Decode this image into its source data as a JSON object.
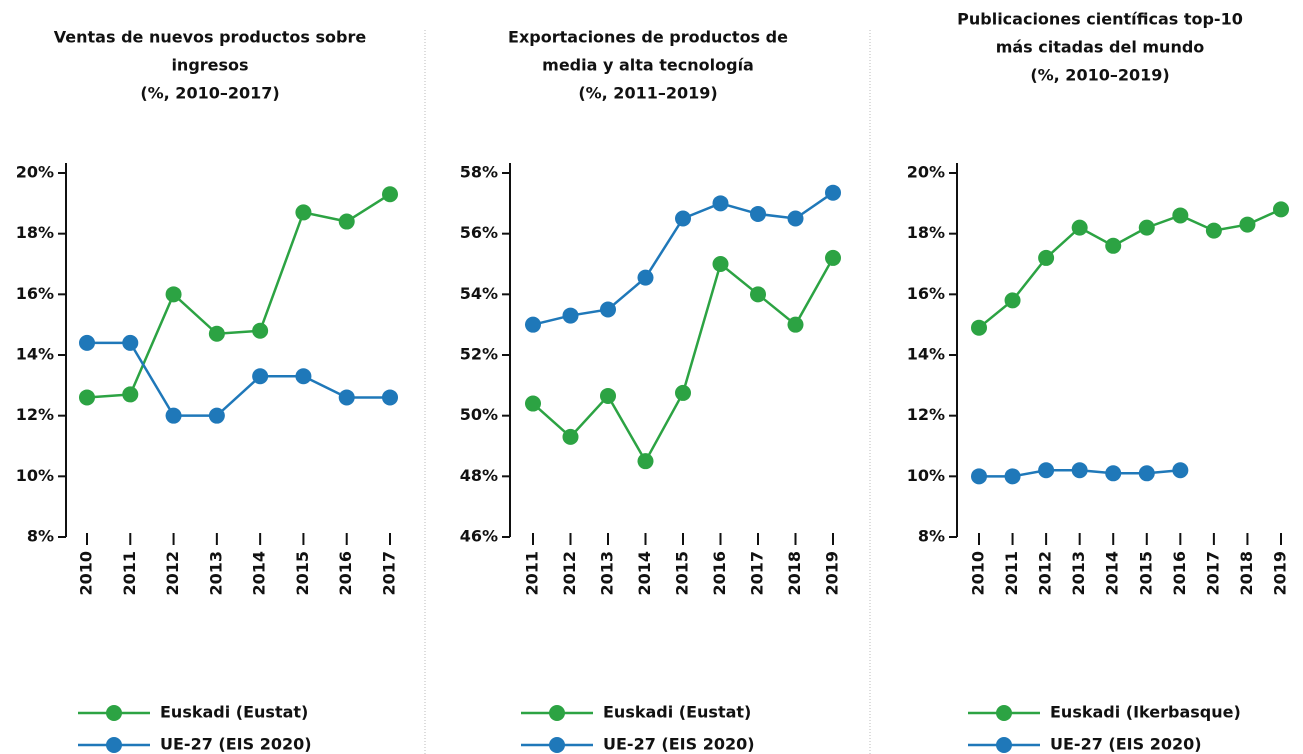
{
  "chart_data": [
    {
      "type": "line",
      "title": [
        "Ventas de nuevos productos sobre",
        "ingresos",
        "(%, 2010–2017)"
      ],
      "categories": [
        "2010",
        "2011",
        "2012",
        "2013",
        "2014",
        "2015",
        "2016",
        "2017"
      ],
      "series": [
        {
          "name": "Euskadi (Eustat)",
          "color": "#2ca343",
          "values": [
            12.6,
            12.7,
            16.0,
            14.7,
            14.8,
            18.7,
            18.4,
            19.3
          ]
        },
        {
          "name": "UE-27 (EIS 2020)",
          "color": "#1f78b9",
          "values": [
            14.4,
            14.4,
            12.0,
            12.0,
            13.3,
            13.3,
            12.6,
            12.6
          ]
        }
      ],
      "ylim": [
        8,
        20
      ],
      "yticks": [
        {
          "value": 8,
          "label": "8%"
        },
        {
          "value": 10,
          "label": "10%"
        },
        {
          "value": 12,
          "label": "12%"
        },
        {
          "value": 14,
          "label": "14%"
        },
        {
          "value": 16,
          "label": "16%"
        },
        {
          "value": 18,
          "label": "18%"
        },
        {
          "value": 20,
          "label": "20%"
        }
      ]
    },
    {
      "type": "line",
      "title": [
        "Exportaciones de productos de",
        "media y alta tecnología",
        "(%, 2011–2019)"
      ],
      "categories": [
        "2011",
        "2012",
        "2013",
        "2014",
        "2015",
        "2016",
        "2017",
        "2018",
        "2019"
      ],
      "series": [
        {
          "name": "Euskadi (Eustat)",
          "color": "#2ca343",
          "values": [
            50.4,
            49.3,
            50.65,
            48.5,
            50.75,
            55.0,
            54.0,
            53.0,
            55.2
          ]
        },
        {
          "name": "UE-27 (EIS 2020)",
          "color": "#1f78b9",
          "values": [
            53.0,
            53.3,
            53.5,
            54.55,
            56.5,
            57.0,
            56.65,
            56.5,
            57.35
          ]
        }
      ],
      "ylim": [
        46,
        58
      ],
      "yticks": [
        {
          "value": 46,
          "label": "46%"
        },
        {
          "value": 48,
          "label": "48%"
        },
        {
          "value": 50,
          "label": "50%"
        },
        {
          "value": 52,
          "label": "52%"
        },
        {
          "value": 54,
          "label": "54%"
        },
        {
          "value": 56,
          "label": "56%"
        },
        {
          "value": 58,
          "label": "58%"
        }
      ]
    },
    {
      "type": "line",
      "title": [
        "Publicaciones científicas top-10",
        "más citadas del mundo",
        "(%, 2010–2019)"
      ],
      "categories": [
        "2010",
        "2011",
        "2012",
        "2013",
        "2014",
        "2015",
        "2016",
        "2017",
        "2018",
        "2019"
      ],
      "series": [
        {
          "name": "Euskadi (Ikerbasque)",
          "color": "#2ca343",
          "values": [
            14.9,
            15.8,
            17.2,
            18.2,
            17.6,
            18.2,
            18.6,
            18.1,
            18.3,
            18.8
          ]
        },
        {
          "name": "UE-27 (EIS 2020)",
          "color": "#1f78b9",
          "values": [
            10.0,
            10.0,
            10.2,
            10.2,
            10.1,
            10.1,
            10.2,
            null,
            null,
            null
          ]
        }
      ],
      "ylim": [
        8,
        20
      ],
      "yticks": [
        {
          "value": 8,
          "label": "8%"
        },
        {
          "value": 10,
          "label": "10%"
        },
        {
          "value": 12,
          "label": "12%"
        },
        {
          "value": 14,
          "label": "14%"
        },
        {
          "value": 16,
          "label": "16%"
        },
        {
          "value": 18,
          "label": "18%"
        },
        {
          "value": 20,
          "label": "20%"
        }
      ]
    }
  ]
}
